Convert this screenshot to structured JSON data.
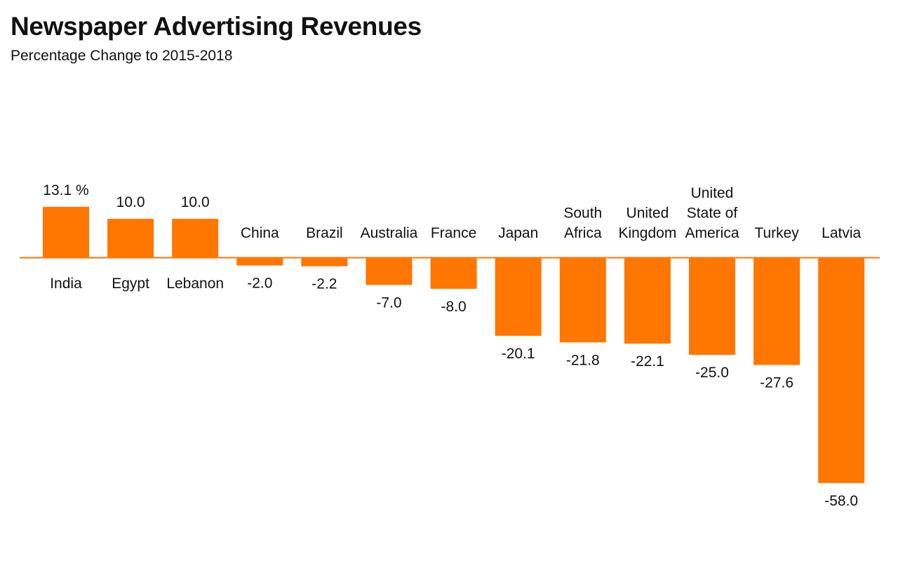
{
  "chart_data": {
    "type": "bar",
    "title": "Newspaper Advertising Revenues",
    "subtitle": "Percentage Change to 2015-2018",
    "xlabel": "",
    "ylabel": "",
    "unit_suffix": " %",
    "ylim": [
      -60,
      15
    ],
    "grid": false,
    "legend": "none",
    "color": "#FF7600",
    "baseline_color": "#FF7600",
    "categories": [
      [
        "India"
      ],
      [
        "Egypt"
      ],
      [
        "Lebanon"
      ],
      [
        "China"
      ],
      [
        "Brazil"
      ],
      [
        "Australia"
      ],
      [
        "France"
      ],
      [
        "Japan"
      ],
      [
        "South",
        "Africa"
      ],
      [
        "United",
        "Kingdom"
      ],
      [
        "United",
        "State of",
        "America"
      ],
      [
        "Turkey"
      ],
      [
        "Latvia"
      ]
    ],
    "values": [
      13.1,
      10.0,
      10.0,
      -2.0,
      -2.2,
      -7.0,
      -8.0,
      -20.1,
      -21.8,
      -22.1,
      -25.0,
      -27.6,
      -58.0
    ],
    "value_labels": [
      "13.1 %",
      "10.0",
      "10.0",
      "-2.0",
      "-2.2",
      "-7.0",
      "-8.0",
      "-20.1",
      "-21.8",
      "-22.1",
      "-25.0",
      "-27.6",
      "-58.0"
    ]
  }
}
